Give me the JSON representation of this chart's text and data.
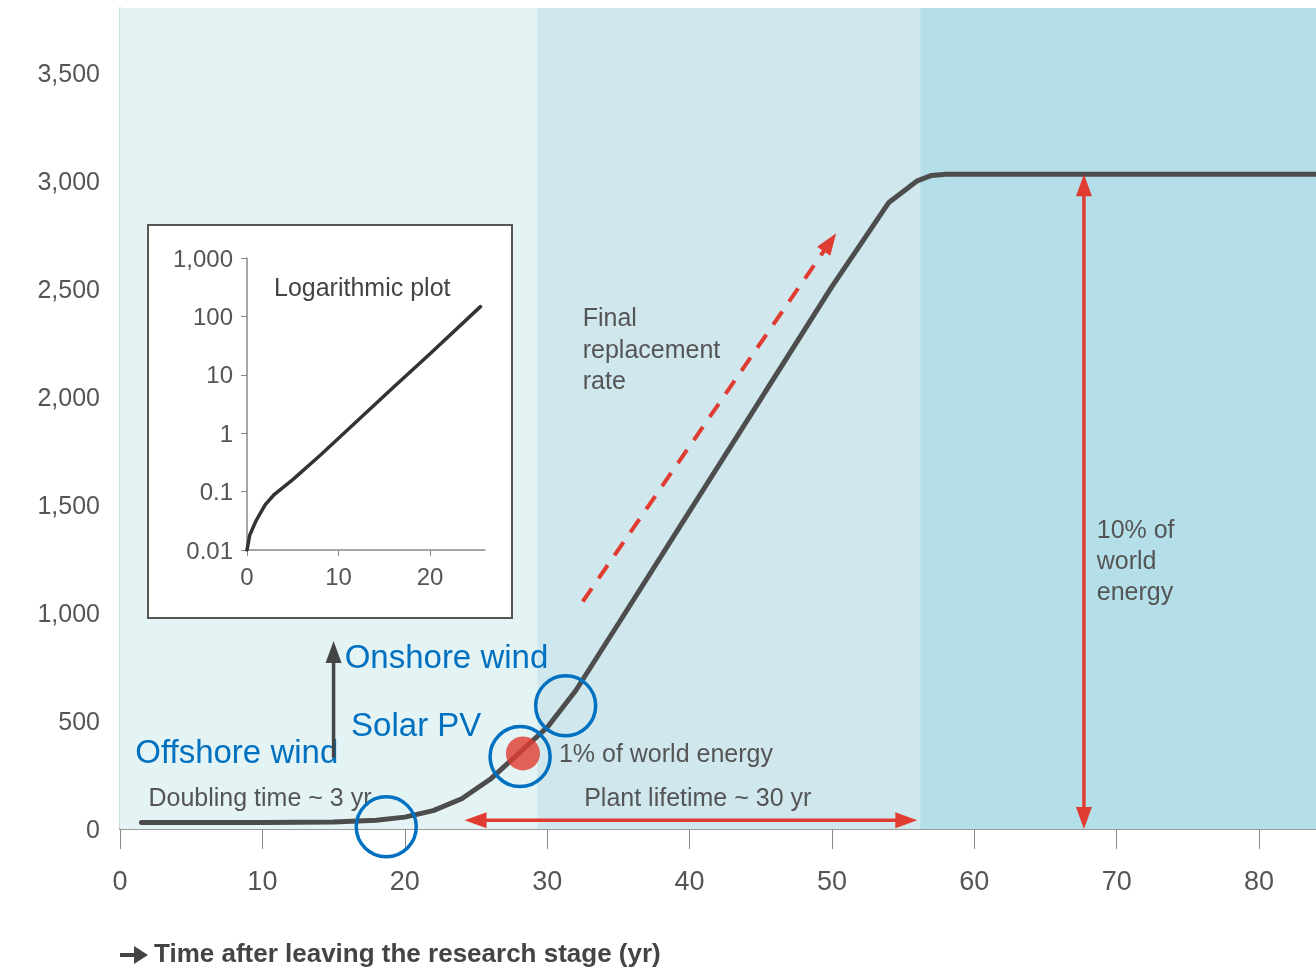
{
  "chart_data": [
    {
      "type": "line",
      "xlabel": "Time after leaving the research stage (yr)",
      "xlim": [
        0,
        84
      ],
      "xticks": [
        0,
        10,
        20,
        30,
        40,
        50,
        60,
        70,
        80
      ],
      "ylim": [
        0,
        3800
      ],
      "yticks": [
        0,
        500,
        {
          "value": 1000,
          "label": "1,000"
        },
        {
          "value": 1500,
          "label": "1,500"
        },
        {
          "value": 2000,
          "label": "2,000"
        },
        {
          "value": 2500,
          "label": "2,500"
        },
        {
          "value": 3000,
          "label": "3,000"
        },
        {
          "value": 3500,
          "label": "3,500"
        }
      ],
      "grid": "y",
      "bands": [
        {
          "axis": "x",
          "from": 0,
          "to": 29.3,
          "color": "#e4f3f4"
        },
        {
          "axis": "x",
          "from": 29.3,
          "to": 56.2,
          "color": "#cfe7ed"
        },
        {
          "axis": "x",
          "from": 56.2,
          "to": 84,
          "color": "#b4dfe9"
        }
      ],
      "series": [
        {
          "color": "#4d4d4d",
          "x": [
            1.5,
            10,
            15,
            18,
            20,
            22,
            24,
            26,
            30,
            32,
            35,
            40,
            45,
            50,
            54,
            56,
            57,
            58,
            60,
            70,
            84
          ],
          "values": [
            30,
            30,
            32,
            40,
            55,
            85,
            140,
            230,
            470,
            640,
            950,
            1470,
            1990,
            2510,
            2900,
            3000,
            3025,
            3030,
            3030,
            3030,
            3030
          ]
        },
        {
          "type": "scatter",
          "color": "#e03c31",
          "x": [
            28.3
          ],
          "values": [
            350
          ]
        }
      ],
      "annotations": [
        "Final replacement rate",
        "10% of world energy",
        {
          "text": "1% of world energy",
          "x": 28.3,
          "y": 350
        },
        "Plant lifetime ~ 30 yr",
        "Doubling time ~ 3 yr",
        {
          "text": "Onshore wind",
          "x": 31.3,
          "y": 570
        },
        {
          "text": "Solar PV",
          "x": 28.1,
          "y": 335
        },
        {
          "text": "Offshore wind",
          "x": 18.7,
          "y": 10
        }
      ]
    },
    {
      "type": "line",
      "title": "Logarithmic plot",
      "log": "y",
      "xlim": [
        0,
        26
      ],
      "xticks": [
        0,
        10,
        20
      ],
      "ylim": [
        0.01,
        1000
      ],
      "yticks": [
        0.01,
        0.1,
        1,
        10,
        100,
        {
          "value": 1000,
          "label": "1,000"
        }
      ],
      "x": [
        0,
        0.3,
        1,
        2,
        3,
        5,
        8,
        12,
        16,
        20,
        25.5
      ],
      "series": [
        {
          "color": "#333333",
          "values": [
            0.01,
            0.018,
            0.032,
            0.06,
            0.09,
            0.16,
            0.42,
            1.6,
            6.1,
            23,
            147
          ]
        }
      ]
    }
  ]
}
